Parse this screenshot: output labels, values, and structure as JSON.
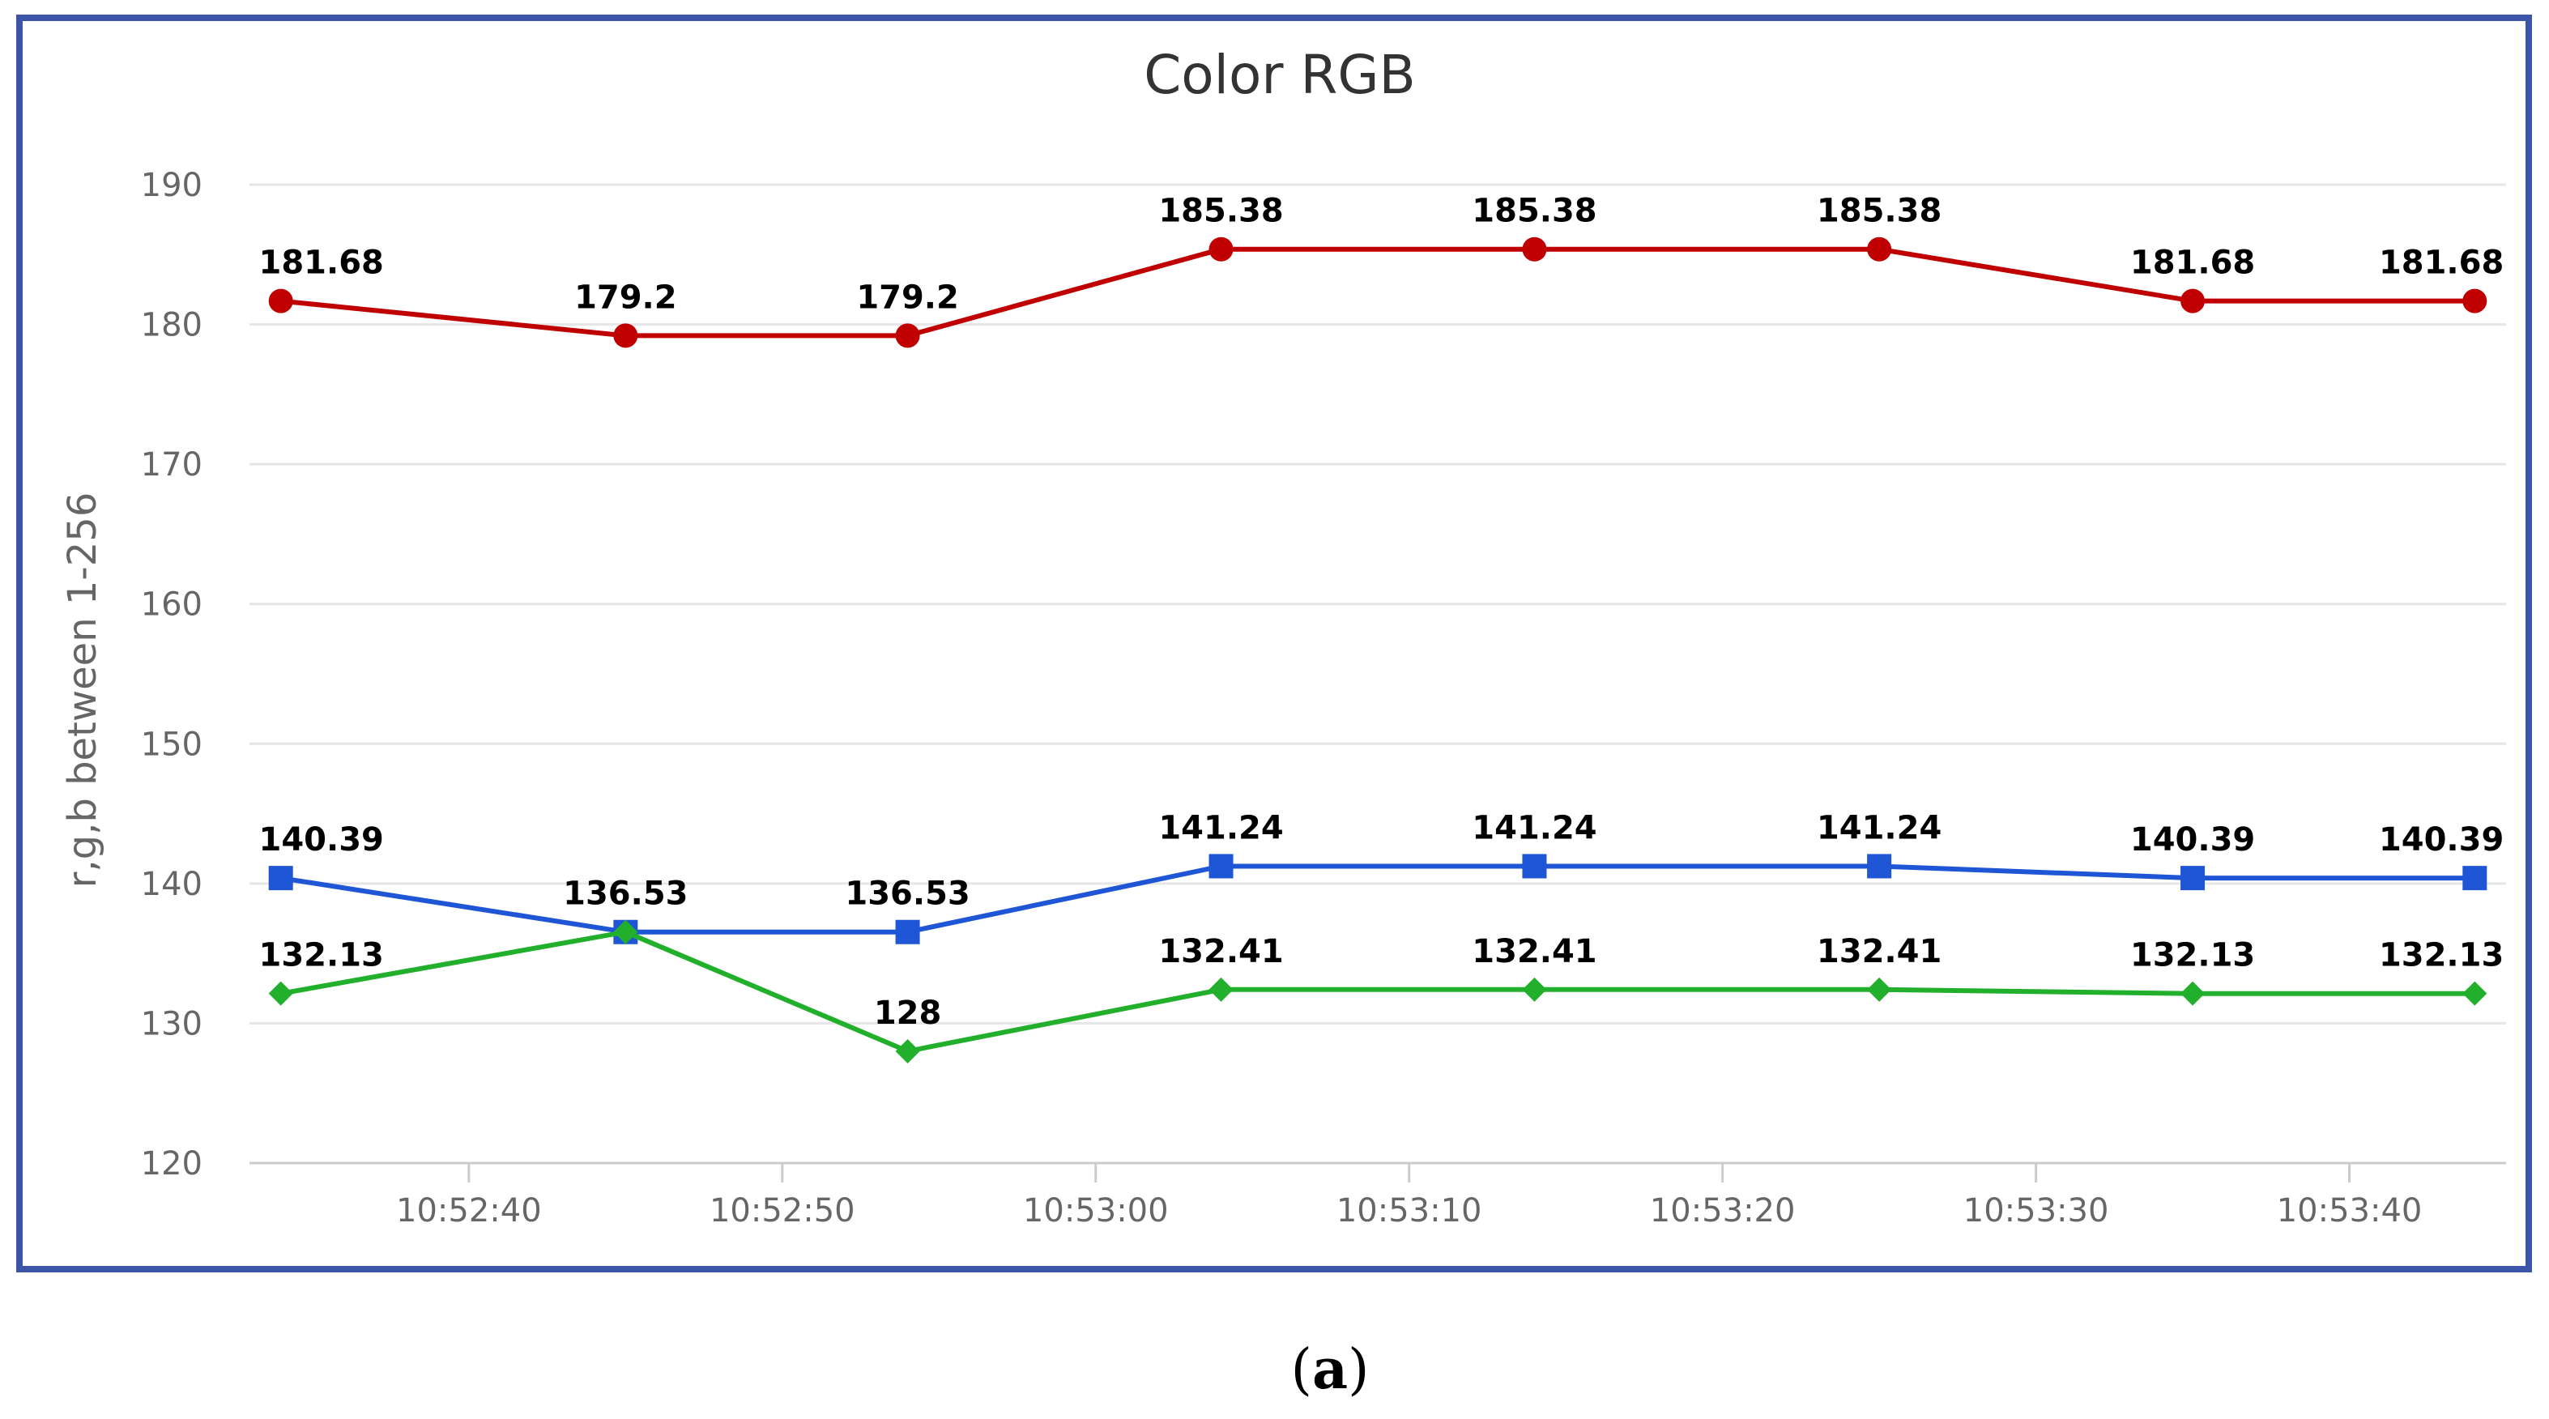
{
  "chart_data": {
    "type": "line",
    "title": "Color RGB",
    "xlabel": "",
    "ylabel": "r,g,b between 1-256",
    "ylim": [
      120,
      190
    ],
    "yticks": [
      "120",
      "130",
      "140",
      "150",
      "160",
      "170",
      "180",
      "190"
    ],
    "x_unit": "seconds",
    "xlim": [
      "10:52:33",
      "10:53:45"
    ],
    "xtick_labels": [
      "10:52:40",
      "10:52:50",
      "10:53:00",
      "10:53:10",
      "10:53:20",
      "10:53:30",
      "10:53:40"
    ],
    "x": [
      "10:52:34",
      "10:52:45",
      "10:52:54",
      "10:53:04",
      "10:53:14",
      "10:53:25",
      "10:53:35",
      "10:53:44"
    ],
    "grid": true,
    "legend": "none",
    "series": [
      {
        "color": "#c00000",
        "marker": "circle",
        "values": [
          181.68,
          179.2,
          179.2,
          185.38,
          185.38,
          185.38,
          181.68,
          181.68
        ],
        "labels": [
          "181.68",
          "179.2",
          "179.2",
          "185.38",
          "185.38",
          "185.38",
          "181.68",
          "181.68"
        ]
      },
      {
        "color": "#1f56d6",
        "marker": "square",
        "values": [
          140.39,
          136.53,
          136.53,
          141.24,
          141.24,
          141.24,
          140.39,
          140.39
        ],
        "labels": [
          "140.39",
          "136.53",
          "136.53",
          "141.24",
          "141.24",
          "141.24",
          "140.39",
          "140.39"
        ]
      },
      {
        "color": "#22b02c",
        "marker": "diamond",
        "values": [
          132.13,
          136.53,
          128,
          132.41,
          132.41,
          132.41,
          132.13,
          132.13
        ],
        "labels": [
          "132.13",
          "",
          "128",
          "132.41",
          "132.41",
          "132.41",
          "132.13",
          "132.13"
        ]
      }
    ]
  },
  "caption": {
    "open": "(",
    "letter": "a",
    "close": ")"
  },
  "colors": {
    "frame": "#3d55a8",
    "grid": "#e6e6e6",
    "axis": "#cccccc"
  }
}
